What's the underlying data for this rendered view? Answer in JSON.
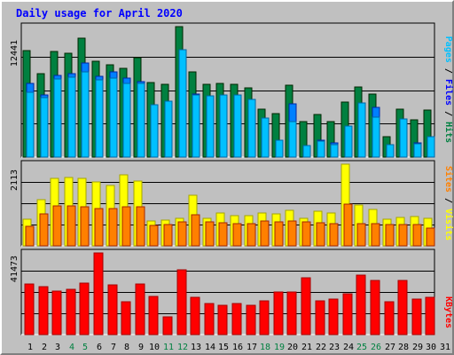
{
  "title": "Daily usage for April 2020",
  "colors": {
    "background": "#c0c0c0",
    "panel": "#c0c0c0",
    "hits": "#008040",
    "files": "#0080ff",
    "pages": "#00c0ff",
    "visits": "#ffff00",
    "sites": "#ff8000",
    "kbytes": "#ff0000",
    "title_text": "#0000ff",
    "weekend_day": "#008040",
    "weekday_day": "#000000"
  },
  "side_labels": {
    "top": [
      {
        "text": "Pages",
        "color": "#00c0ff"
      },
      {
        "text": " / ",
        "color": "#000000"
      },
      {
        "text": "Files",
        "color": "#0000ff"
      },
      {
        "text": " / ",
        "color": "#000000"
      },
      {
        "text": "Hits",
        "color": "#008040"
      }
    ],
    "middle": [
      {
        "text": "Sites",
        "color": "#ff8000"
      },
      {
        "text": " / ",
        "color": "#000000"
      },
      {
        "text": "Visits",
        "color": "#ffff00"
      }
    ],
    "bottom": [
      {
        "text": "KBytes",
        "color": "#ff0000"
      }
    ]
  },
  "chart_data": [
    {
      "type": "bar",
      "panel": "hits_files_pages",
      "max_label": "12441",
      "ylim": [
        0,
        12441
      ],
      "categories": [
        "1",
        "2",
        "3",
        "4",
        "5",
        "6",
        "7",
        "8",
        "9",
        "10",
        "11",
        "12",
        "13",
        "14",
        "15",
        "16",
        "17",
        "18",
        "19",
        "20",
        "21",
        "22",
        "23",
        "24",
        "25",
        "26",
        "27",
        "28",
        "29",
        "30",
        "31"
      ],
      "series": [
        {
          "name": "Hits",
          "values": [
            10180,
            7960,
            10110,
            9920,
            11300,
            9140,
            8840,
            8450,
            9460,
            7100,
            6920,
            12441,
            8160,
            6920,
            7010,
            6910,
            6610,
            4590,
            4150,
            6860,
            3390,
            4100,
            3390,
            5230,
            6710,
            6000,
            1950,
            4540,
            3560,
            4470,
            0
          ]
        },
        {
          "name": "Files",
          "values": [
            7010,
            5920,
            7810,
            7920,
            8940,
            7690,
            8110,
            7510,
            7170,
            4990,
            5060,
            8620,
            5990,
            4940,
            5620,
            5630,
            5140,
            1470,
            1610,
            5070,
            1030,
            1630,
            1340,
            2920,
            4230,
            4730,
            1080,
            3250,
            1340,
            1590,
            0
          ]
        },
        {
          "name": "Pages",
          "values": [
            6150,
            5630,
            7430,
            7630,
            8110,
            7330,
            7510,
            7010,
            7010,
            5020,
            5300,
            10240,
            5890,
            5800,
            5930,
            5940,
            5540,
            3730,
            1650,
            3370,
            1100,
            1490,
            1200,
            2940,
            5180,
            3820,
            1160,
            3650,
            1300,
            1960,
            0
          ]
        }
      ]
    },
    {
      "type": "bar",
      "panel": "visits_sites",
      "max_label": "2113",
      "ylim": [
        0,
        2113
      ],
      "categories": [
        "1",
        "2",
        "3",
        "4",
        "5",
        "6",
        "7",
        "8",
        "9",
        "10",
        "11",
        "12",
        "13",
        "14",
        "15",
        "16",
        "17",
        "18",
        "19",
        "20",
        "21",
        "22",
        "23",
        "24",
        "25",
        "26",
        "27",
        "28",
        "29",
        "30",
        "31"
      ],
      "series": [
        {
          "name": "Visits",
          "values": [
            680,
            1200,
            1740,
            1770,
            1750,
            1650,
            1570,
            1830,
            1680,
            650,
            670,
            710,
            1300,
            720,
            840,
            780,
            770,
            850,
            820,
            910,
            720,
            890,
            850,
            2113,
            1050,
            940,
            690,
            730,
            760,
            720,
            0
          ]
        },
        {
          "name": "Sites",
          "values": [
            510,
            820,
            1030,
            1030,
            1020,
            960,
            970,
            1010,
            1000,
            530,
            540,
            620,
            800,
            630,
            590,
            580,
            580,
            650,
            630,
            650,
            610,
            590,
            580,
            1090,
            580,
            570,
            540,
            550,
            540,
            460,
            0
          ]
        }
      ]
    },
    {
      "type": "bar",
      "panel": "kbytes",
      "max_label": "41473",
      "ylim": [
        0,
        41473
      ],
      "categories": [
        "1",
        "2",
        "3",
        "4",
        "5",
        "6",
        "7",
        "8",
        "9",
        "10",
        "11",
        "12",
        "13",
        "14",
        "15",
        "16",
        "17",
        "18",
        "19",
        "20",
        "21",
        "22",
        "23",
        "24",
        "25",
        "26",
        "27",
        "28",
        "29",
        "30",
        "31"
      ],
      "series": [
        {
          "name": "KBytes",
          "values": [
            25800,
            24300,
            22100,
            23100,
            26300,
            41473,
            25200,
            16900,
            25600,
            19200,
            8900,
            33100,
            19100,
            15700,
            15100,
            15700,
            14800,
            17200,
            21800,
            21600,
            29000,
            17200,
            18100,
            20600,
            30300,
            27300,
            16800,
            27700,
            18100,
            19100,
            0
          ]
        }
      ]
    }
  ],
  "weekend_days": [
    4,
    5,
    11,
    12,
    18,
    19,
    25,
    26
  ]
}
